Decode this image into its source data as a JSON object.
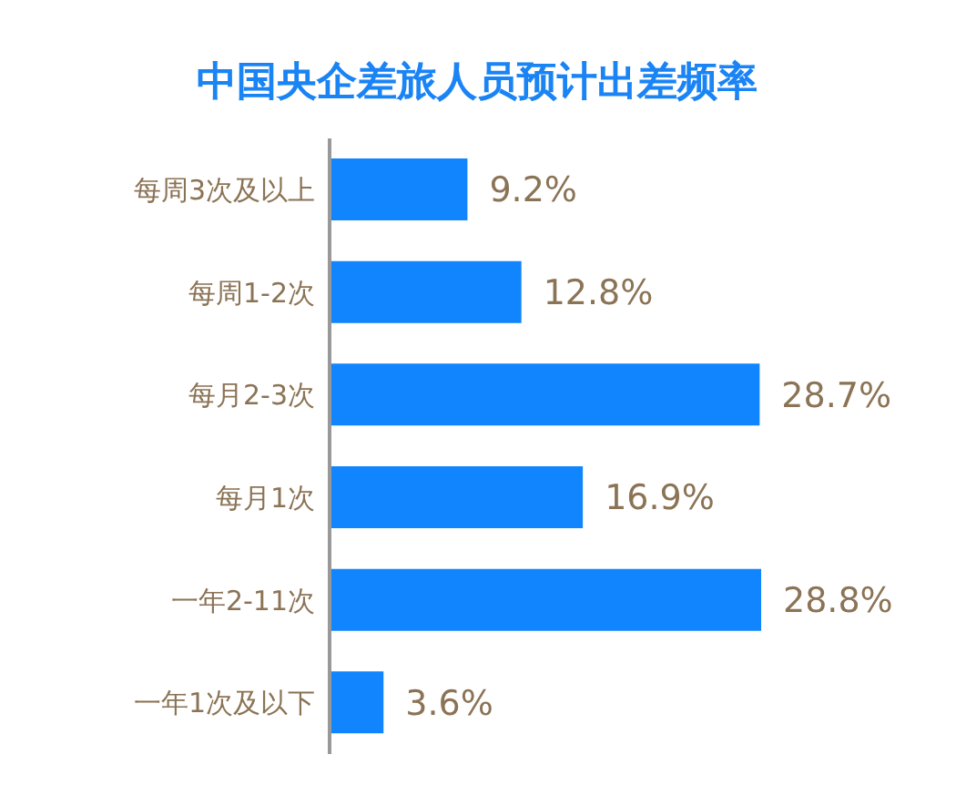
{
  "chart_data": {
    "type": "bar",
    "orientation": "horizontal",
    "title": "中国央企差旅人员预计出差频率",
    "categories": [
      "每周3次及以上",
      "每周1-2次",
      "每月2-3次",
      "每月1次",
      "一年2-11次",
      "一年1次及以下"
    ],
    "values": [
      9.2,
      12.8,
      28.7,
      16.9,
      28.8,
      3.6
    ],
    "value_labels": [
      "9.2%",
      "12.8%",
      "28.7%",
      "16.9%",
      "28.8%",
      "3.6%"
    ],
    "color": "#1185fe",
    "tick_labels": "y"
  }
}
